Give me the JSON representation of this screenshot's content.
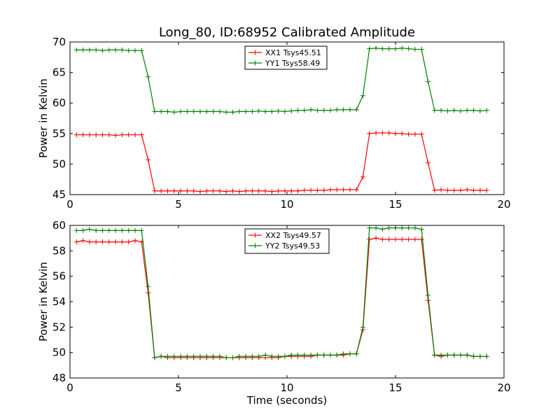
{
  "chart_data": [
    {
      "type": "line",
      "title": "Long_80, ID:68952 Calibrated Amplitude",
      "xlabel": "",
      "ylabel": "Power in Kelvin",
      "xlim": [
        0,
        20
      ],
      "ylim": [
        45,
        70
      ],
      "xticks": [
        "0",
        "5",
        "10",
        "15",
        "20"
      ],
      "yticks": [
        "45",
        "50",
        "55",
        "60",
        "65",
        "70"
      ],
      "grid": false,
      "legend_position": "top-center",
      "x": [
        0.3,
        0.6,
        0.9,
        1.2,
        1.5,
        1.8,
        2.1,
        2.4,
        2.7,
        3.0,
        3.3,
        3.6,
        3.9,
        4.2,
        4.5,
        4.8,
        5.1,
        5.4,
        5.7,
        6.0,
        6.3,
        6.6,
        6.9,
        7.2,
        7.5,
        7.8,
        8.1,
        8.4,
        8.7,
        9.0,
        9.3,
        9.6,
        9.9,
        10.2,
        10.5,
        10.8,
        11.1,
        11.4,
        11.7,
        12.0,
        12.3,
        12.6,
        12.9,
        13.2,
        13.5,
        13.8,
        14.1,
        14.4,
        14.7,
        15.0,
        15.3,
        15.6,
        15.9,
        16.2,
        16.5,
        16.8,
        17.1,
        17.4,
        17.7,
        18.0,
        18.3,
        18.6,
        18.9,
        19.2
      ],
      "series": [
        {
          "name": "XX1 Tsys45.51",
          "color": "#ff0000",
          "values": [
            54.8,
            54.8,
            54.8,
            54.8,
            54.8,
            54.8,
            54.7,
            54.8,
            54.8,
            54.8,
            54.8,
            50.7,
            45.6,
            45.6,
            45.6,
            45.6,
            45.6,
            45.6,
            45.6,
            45.5,
            45.6,
            45.6,
            45.6,
            45.5,
            45.6,
            45.5,
            45.6,
            45.6,
            45.6,
            45.6,
            45.5,
            45.6,
            45.6,
            45.6,
            45.6,
            45.7,
            45.7,
            45.7,
            45.7,
            45.8,
            45.8,
            45.8,
            45.8,
            45.8,
            47.9,
            55.0,
            55.1,
            55.1,
            55.1,
            55.0,
            55.0,
            54.9,
            54.9,
            54.9,
            50.2,
            45.7,
            45.8,
            45.7,
            45.7,
            45.7,
            45.8,
            45.7,
            45.7,
            45.7
          ]
        },
        {
          "name": "YY1 Tsys58.49",
          "color": "#008000",
          "values": [
            68.7,
            68.7,
            68.7,
            68.7,
            68.6,
            68.7,
            68.7,
            68.7,
            68.6,
            68.6,
            68.6,
            64.3,
            58.6,
            58.6,
            58.6,
            58.5,
            58.6,
            58.6,
            58.6,
            58.6,
            58.6,
            58.6,
            58.6,
            58.5,
            58.5,
            58.6,
            58.6,
            58.6,
            58.7,
            58.6,
            58.6,
            58.7,
            58.6,
            58.7,
            58.8,
            58.8,
            58.9,
            58.8,
            58.8,
            58.8,
            58.9,
            58.9,
            58.9,
            58.9,
            61.2,
            68.9,
            69.0,
            68.9,
            68.9,
            68.9,
            69.0,
            68.9,
            68.8,
            68.8,
            63.5,
            58.8,
            58.8,
            58.7,
            58.8,
            58.7,
            58.8,
            58.8,
            58.7,
            58.8
          ]
        }
      ]
    },
    {
      "type": "line",
      "title": "",
      "xlabel": "Time (seconds)",
      "ylabel": "Power in Kelvin",
      "xlim": [
        0,
        20
      ],
      "ylim": [
        48,
        60
      ],
      "xticks": [
        "0",
        "5",
        "10",
        "15",
        "20"
      ],
      "yticks": [
        "48",
        "50",
        "52",
        "54",
        "56",
        "58",
        "60"
      ],
      "grid": false,
      "legend_position": "top-center",
      "x": [
        0.3,
        0.6,
        0.9,
        1.2,
        1.5,
        1.8,
        2.1,
        2.4,
        2.7,
        3.0,
        3.3,
        3.6,
        3.9,
        4.2,
        4.5,
        4.8,
        5.1,
        5.4,
        5.7,
        6.0,
        6.3,
        6.6,
        6.9,
        7.2,
        7.5,
        7.8,
        8.1,
        8.4,
        8.7,
        9.0,
        9.3,
        9.6,
        9.9,
        10.2,
        10.5,
        10.8,
        11.1,
        11.4,
        11.7,
        12.0,
        12.3,
        12.6,
        12.9,
        13.2,
        13.5,
        13.8,
        14.1,
        14.4,
        14.7,
        15.0,
        15.3,
        15.6,
        15.9,
        16.2,
        16.5,
        16.8,
        17.1,
        17.4,
        17.7,
        18.0,
        18.3,
        18.6,
        18.9,
        19.2
      ],
      "series": [
        {
          "name": "XX2 Tsys49.57",
          "color": "#ff0000",
          "values": [
            58.7,
            58.8,
            58.7,
            58.7,
            58.7,
            58.7,
            58.7,
            58.7,
            58.7,
            58.8,
            58.7,
            54.7,
            49.6,
            49.7,
            49.6,
            49.6,
            49.6,
            49.6,
            49.6,
            49.6,
            49.6,
            49.6,
            49.6,
            49.6,
            49.6,
            49.6,
            49.6,
            49.6,
            49.6,
            49.6,
            49.6,
            49.6,
            49.7,
            49.7,
            49.7,
            49.7,
            49.7,
            49.8,
            49.8,
            49.8,
            49.8,
            49.8,
            49.9,
            49.9,
            51.8,
            58.9,
            59.0,
            58.9,
            58.9,
            58.9,
            58.9,
            58.9,
            58.9,
            58.9,
            54.1,
            49.8,
            49.7,
            49.8,
            49.8,
            49.8,
            49.8,
            49.7,
            49.7,
            49.7
          ]
        },
        {
          "name": "YY2 Tsys49.53",
          "color": "#008000",
          "values": [
            59.6,
            59.6,
            59.7,
            59.6,
            59.6,
            59.6,
            59.6,
            59.6,
            59.6,
            59.6,
            59.6,
            55.2,
            49.6,
            49.7,
            49.7,
            49.7,
            49.7,
            49.7,
            49.7,
            49.7,
            49.7,
            49.7,
            49.7,
            49.6,
            49.6,
            49.7,
            49.7,
            49.7,
            49.7,
            49.8,
            49.7,
            49.7,
            49.7,
            49.8,
            49.8,
            49.8,
            49.8,
            49.8,
            49.8,
            49.8,
            49.8,
            49.9,
            49.9,
            49.9,
            52.0,
            59.8,
            59.8,
            59.7,
            59.8,
            59.8,
            59.8,
            59.8,
            59.8,
            59.7,
            54.5,
            49.8,
            49.8,
            49.8,
            49.8,
            49.8,
            49.8,
            49.7,
            49.7,
            49.7
          ]
        }
      ]
    }
  ]
}
